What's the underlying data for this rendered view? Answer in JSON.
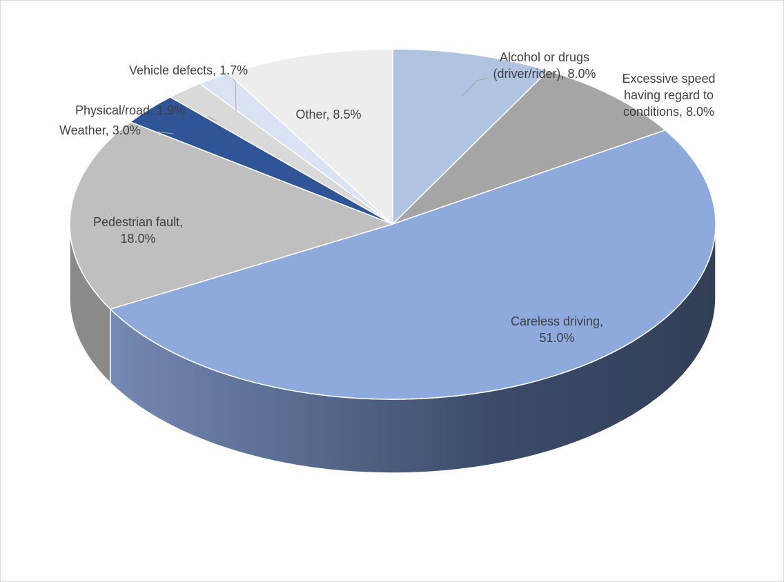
{
  "chart_data": {
    "type": "pie",
    "title": "",
    "slices": [
      {
        "label": "Alcohol or drugs (driver/rider)",
        "value": 8.0,
        "label_text": [
          "Alcohol  or drugs",
          "(driver/rider), 8.0%"
        ],
        "color": "#b0c3e1"
      },
      {
        "label": "Excessive speed having regard to conditions",
        "value": 8.0,
        "label_text": [
          "Excessive speed",
          "having regard to",
          "conditions, 8.0%"
        ],
        "color": "#a5a5a5"
      },
      {
        "label": "Careless driving",
        "value": 51.0,
        "label_text": [
          "Careless driving,",
          "51.0%"
        ],
        "color": "#8ea9db"
      },
      {
        "label": "Pedestrian fault",
        "value": 18.0,
        "label_text": [
          "Pedestrian fault,",
          "18.0%"
        ],
        "color": "#bfbfbf"
      },
      {
        "label": "Weather",
        "value": 3.0,
        "label_text": [
          "Weather, 3.0%"
        ],
        "color": "#2f5597"
      },
      {
        "label": "Physical/road",
        "value": 1.9,
        "label_text": [
          "Physical/road, 1.9%"
        ],
        "color": "#d9d9d9"
      },
      {
        "label": "Vehicle defects",
        "value": 1.7,
        "label_text": [
          "Vehicle  defects, 1.7%"
        ],
        "color": "#dae3f3"
      },
      {
        "label": "Other",
        "value": 8.5,
        "label_text": [
          "Other, 8.5%"
        ],
        "color": "#ededed"
      }
    ],
    "style": "3d-pie",
    "start": "12 o'clock, clockwise"
  }
}
